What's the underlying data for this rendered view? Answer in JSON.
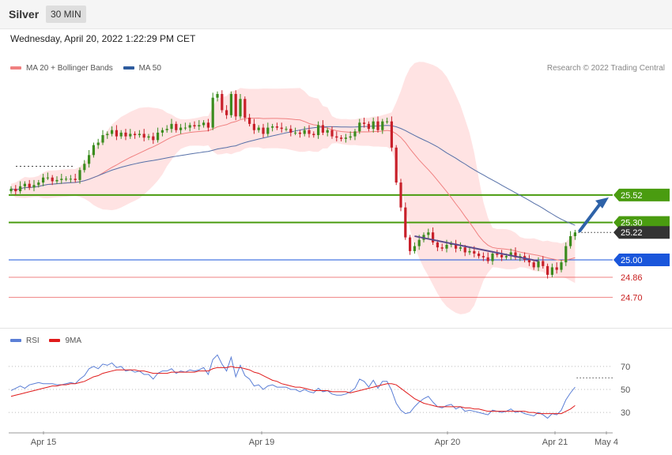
{
  "header": {
    "instrument": "Silver",
    "timeframe": "30 MIN"
  },
  "timestamp": "Wednesday, April 20, 2022 1:22:29 PM CET",
  "legend_top": [
    {
      "label": "MA 20 + Bollinger Bands",
      "color": "#f08080"
    },
    {
      "label": "MA 50",
      "color": "#2e5c9e"
    }
  ],
  "credit": "Research © 2022 Trading Central",
  "legend_bottom": [
    {
      "label": "RSI",
      "color": "#5b7fd6"
    },
    {
      "label": "9MA",
      "color": "#e01b1b"
    }
  ],
  "colors": {
    "up": "#3b8c1e",
    "down": "#c8202a",
    "bollinger": "#ffe3e3",
    "ma20": "#f08080",
    "ma50": "#5670a8",
    "arrow": "#2e62a8"
  },
  "chart_data": [
    {
      "type": "candlestick",
      "ylim": [
        24.55,
        26.45
      ],
      "x_ticks": [
        "Apr 15",
        "Apr 19",
        "Apr 20",
        "Apr 21",
        "May 4"
      ],
      "levels": [
        {
          "value": 25.52,
          "label": "25.52",
          "kind": "resistance",
          "color": "#4a9c10"
        },
        {
          "value": 25.3,
          "label": "25.30",
          "kind": "resistance",
          "color": "#4a9c10"
        },
        {
          "value": 25.22,
          "label": "25.22",
          "kind": "last",
          "color": "#333333"
        },
        {
          "value": 25.0,
          "label": "25.00",
          "kind": "pivot",
          "color": "#1a56db"
        },
        {
          "value": 24.86,
          "label": "24.86",
          "kind": "support",
          "color": "#e53030"
        },
        {
          "value": 24.7,
          "label": "24.70",
          "kind": "support",
          "color": "#e53030"
        }
      ],
      "closes": [
        25.57,
        25.55,
        25.59,
        25.61,
        25.58,
        25.6,
        25.62,
        25.66,
        25.66,
        25.63,
        25.64,
        25.65,
        25.65,
        25.65,
        25.64,
        25.72,
        25.77,
        25.84,
        25.92,
        25.94,
        26.0,
        26.01,
        26.04,
        25.99,
        26.02,
        25.99,
        26.01,
        26.0,
        26.01,
        25.98,
        25.99,
        25.96,
        26.02,
        26.04,
        26.05,
        26.09,
        26.04,
        26.06,
        26.06,
        26.08,
        26.07,
        26.08,
        26.1,
        26.06,
        26.3,
        26.33,
        26.2,
        26.16,
        26.33,
        26.15,
        26.29,
        26.14,
        26.09,
        26.04,
        26.06,
        26.01,
        26.06,
        26.07,
        26.06,
        26.05,
        26.05,
        26.02,
        26.02,
        26.01,
        26.04,
        26.01,
        26.0,
        26.08,
        26.02,
        26.04,
        25.99,
        25.98,
        25.97,
        25.98,
        25.99,
        26.03,
        26.1,
        26.09,
        26.05,
        26.11,
        26.04,
        26.11,
        26.11,
        25.9,
        25.62,
        25.42,
        25.18,
        25.07,
        25.11,
        25.16,
        25.2,
        25.22,
        25.14,
        25.1,
        25.09,
        25.12,
        25.13,
        25.09,
        25.1,
        25.06,
        25.07,
        25.05,
        25.03,
        25.02,
        24.99,
        25.05,
        25.04,
        25.02,
        25.03,
        25.06,
        25.02,
        25.03,
        25.0,
        24.98,
        24.94,
        24.99,
        24.95,
        24.88,
        24.94,
        24.92,
        24.98,
        25.11,
        25.19,
        25.22
      ],
      "rsi": {
        "ylim": [
          15,
          85
        ],
        "ticks": [
          30,
          50,
          70
        ],
        "rsi_values": [
          49,
          51,
          53,
          51,
          54,
          55,
          56,
          55,
          55,
          55,
          54,
          54,
          55,
          56,
          55,
          59,
          62,
          68,
          70,
          68,
          72,
          71,
          73,
          69,
          70,
          66,
          67,
          65,
          66,
          63,
          63,
          59,
          64,
          66,
          66,
          68,
          64,
          66,
          65,
          67,
          66,
          67,
          69,
          63,
          76,
          80,
          72,
          66,
          78,
          61,
          71,
          62,
          59,
          53,
          54,
          50,
          53,
          54,
          52,
          52,
          52,
          50,
          50,
          48,
          50,
          48,
          47,
          51,
          48,
          49,
          46,
          45,
          45,
          46,
          48,
          51,
          59,
          57,
          52,
          58,
          51,
          57,
          57,
          49,
          38,
          32,
          29,
          30,
          35,
          39,
          42,
          44,
          39,
          35,
          34,
          36,
          37,
          33,
          35,
          31,
          32,
          31,
          30,
          29,
          28,
          32,
          31,
          30,
          31,
          33,
          30,
          31,
          29,
          28,
          27,
          30,
          28,
          25,
          29,
          28,
          32,
          41,
          47,
          52
        ],
        "ma_values": [
          44,
          45,
          46,
          47,
          48,
          49,
          50,
          51,
          52,
          53,
          53,
          54,
          54,
          55,
          55,
          56,
          57,
          59,
          61,
          62,
          64,
          65,
          66,
          67,
          67,
          67,
          67,
          67,
          66,
          66,
          65,
          64,
          64,
          64,
          64,
          65,
          65,
          65,
          65,
          65,
          65,
          66,
          66,
          66,
          68,
          69,
          69,
          69,
          70,
          69,
          69,
          68,
          67,
          65,
          64,
          62,
          60,
          58,
          57,
          55,
          54,
          53,
          52,
          52,
          51,
          50,
          49,
          49,
          49,
          49,
          48,
          48,
          48,
          48,
          47,
          48,
          49,
          50,
          51,
          52,
          53,
          54,
          55,
          55,
          54,
          51,
          48,
          45,
          42,
          40,
          38,
          37,
          36,
          35,
          35,
          35,
          35,
          35,
          35,
          34,
          34,
          33,
          33,
          32,
          31,
          31,
          31,
          31,
          31,
          31,
          31,
          31,
          31,
          30,
          30,
          29,
          29,
          29,
          29,
          29,
          29,
          31,
          33,
          36
        ]
      }
    }
  ]
}
